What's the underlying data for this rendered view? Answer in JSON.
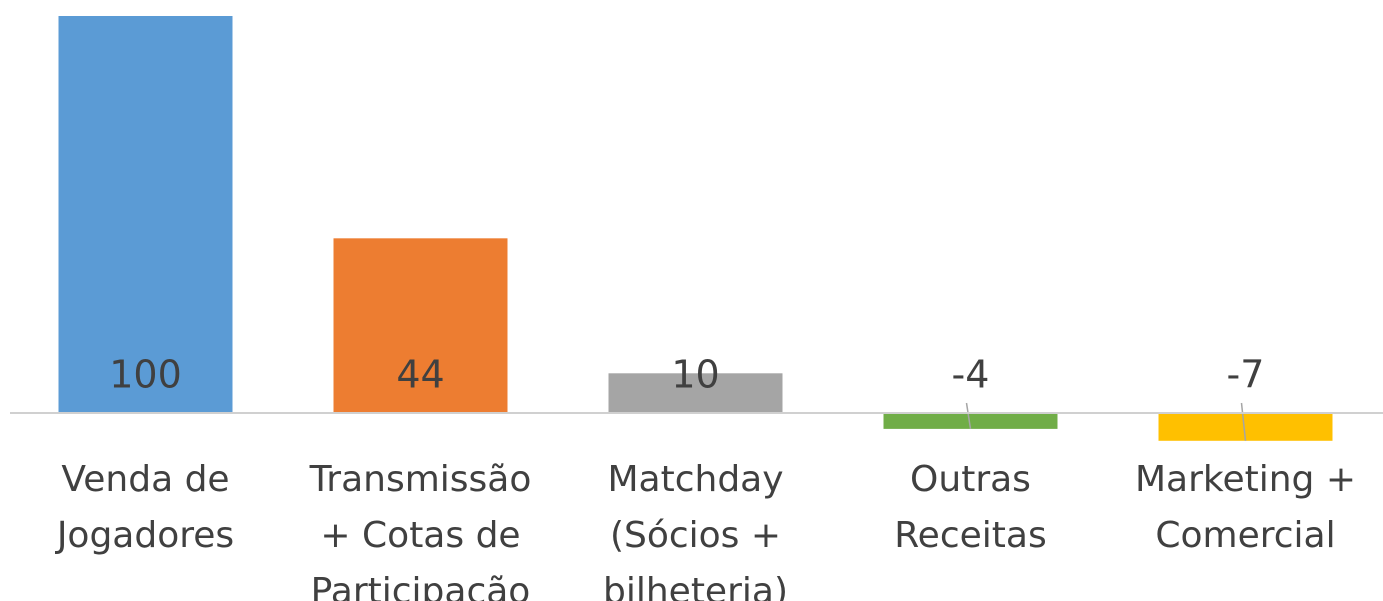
{
  "chart_data": {
    "type": "bar",
    "categories": [
      "Venda de\nJogadores",
      "Transmissão\n+ Cotas de\nParticipação",
      "Matchday\n(Sócios +\nbilheteria)",
      "Outras\nReceitas",
      "Marketing +\nComercial"
    ],
    "values": [
      100,
      44,
      10,
      -4,
      -7
    ],
    "colors": [
      "#5b9bd5",
      "#ed7d31",
      "#a5a5a5",
      "#70ad47",
      "#ffc000"
    ],
    "ylim": [
      -10,
      100
    ]
  }
}
